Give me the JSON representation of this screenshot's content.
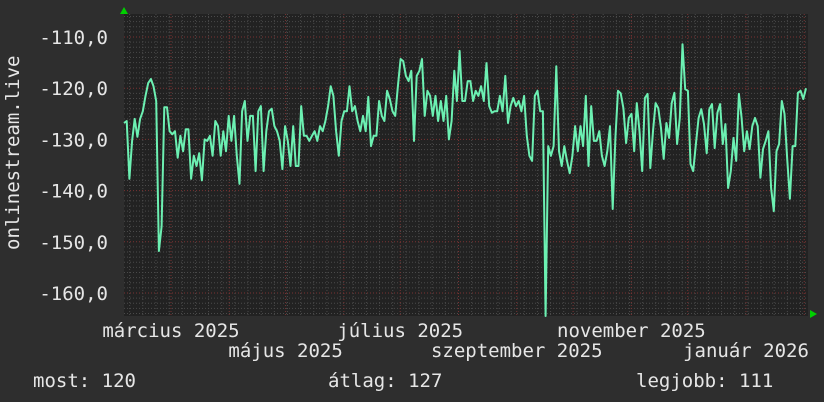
{
  "chart_data": {
    "type": "line",
    "title": "",
    "ylabel": "onlinestream.live",
    "xlabel": "",
    "xlim": [
      "2025-02-04",
      "2026-02-03"
    ],
    "ylim": [
      -164.5,
      -105.5
    ],
    "y_ticks": [
      -110,
      -120,
      -130,
      -140,
      -150,
      -160
    ],
    "y_tick_labels": [
      "-110,0",
      "-120,0",
      "-130,0",
      "-140,0",
      "-150,0",
      "-160,0"
    ],
    "x_ticks": [
      "2025-03-01",
      "2025-05-01",
      "2025-07-01",
      "2025-09-01",
      "2025-11-01",
      "2026-01-01"
    ],
    "x_tick_labels": [
      "március 2025",
      "május 2025",
      "július 2025",
      "szeptember 2025",
      "november 2025",
      "január 2026"
    ],
    "grid": true,
    "colors": {
      "line": "#6cf0b2",
      "background": "#2e2e2e",
      "plot_background": "#222222",
      "major_grid": "#7a3333",
      "minor_grid": "#4a4a4a",
      "arrow": "#00d000"
    },
    "series": [
      {
        "values": [
          -126.8,
          -126.4,
          -137.7,
          -130.3,
          -126,
          -129.5,
          -126,
          -124.5,
          -121.5,
          -119,
          -118.2,
          -119.6,
          -122.5,
          -151.8,
          -147,
          -123.7,
          -123.7,
          -128.4,
          -129,
          -128.4,
          -133.6,
          -129.3,
          -132.3,
          -128,
          -128,
          -137.7,
          -133.2,
          -135.2,
          -132.7,
          -138,
          -130,
          -130.3,
          -129.3,
          -133.2,
          -126.4,
          -127.4,
          -133.2,
          -128.4,
          -132.3,
          -125.4,
          -130.3,
          -125.4,
          -133.2,
          -138.7,
          -124.5,
          -122.5,
          -130.3,
          -125.4,
          -125.4,
          -136.2,
          -124.5,
          -123.5,
          -136.2,
          -128.4,
          -124.5,
          -124,
          -127.4,
          -128.4,
          -130.3,
          -135.8,
          -127.4,
          -130.3,
          -135.2,
          -127.4,
          -135.2,
          -135.2,
          -123.5,
          -129.3,
          -129.3,
          -130.3,
          -129.3,
          -128.4,
          -130.3,
          -127.4,
          -128.4,
          -126.4,
          -123.5,
          -119.6,
          -121.5,
          -128.4,
          -133.2,
          -126.4,
          -124.5,
          -124.5,
          -119.6,
          -124.5,
          -123.5,
          -126.4,
          -128.4,
          -125.4,
          -128.4,
          -121.7,
          -131.3,
          -129.3,
          -129.3,
          -122.5,
          -125.4,
          -126.4,
          -120.5,
          -122.1,
          -124.5,
          -125.4,
          -119.6,
          -114.3,
          -114.7,
          -117.6,
          -118.6,
          -116.6,
          -130.3,
          -117.6,
          -116.6,
          -114.3,
          -125.4,
          -120.5,
          -121.5,
          -125.4,
          -121.5,
          -126.4,
          -122.5,
          -126.4,
          -121.5,
          -130,
          -126.4,
          -116.6,
          -122.5,
          -112.7,
          -122.5,
          -122.5,
          -118.6,
          -118.6,
          -122.5,
          -120.5,
          -121.5,
          -119.6,
          -122.5,
          -115.1,
          -123.5,
          -124.8,
          -124.5,
          -124.5,
          -121.5,
          -124.5,
          -117.6,
          -126.8,
          -123.5,
          -121.9,
          -123.5,
          -122.5,
          -124.5,
          -121.5,
          -129.3,
          -133.2,
          -134.2,
          -121.5,
          -120.5,
          -124.5,
          -124.5,
          -164.5,
          -131.3,
          -133.2,
          -131.3,
          -115.7,
          -132.3,
          -135.2,
          -131.3,
          -134.2,
          -136.6,
          -133.2,
          -127.4,
          -132.3,
          -127.4,
          -131.3,
          -121.5,
          -135.2,
          -123.5,
          -130.3,
          -130.3,
          -128.4,
          -133.2,
          -135.2,
          -132.3,
          -127.4,
          -143.6,
          -129.7,
          -120.5,
          -121,
          -123.9,
          -130.7,
          -125.8,
          -125,
          -132.3,
          -122.9,
          -128.4,
          -136.2,
          -121.9,
          -121.1,
          -135.6,
          -128.4,
          -122.9,
          -123.9,
          -127.8,
          -133.8,
          -126.8,
          -129.7,
          -122.9,
          -120.9,
          -130.9,
          -125.8,
          -111.4,
          -120.2,
          -120.5,
          -134.8,
          -136.2,
          -130.9,
          -125.8,
          -124.1,
          -127,
          -132.7,
          -124.1,
          -123.1,
          -131.7,
          -124.8,
          -123.1,
          -130.9,
          -127,
          -139.5,
          -136.2,
          -129.7,
          -134.2,
          -121.1,
          -125.8,
          -132.3,
          -128.4,
          -131.9,
          -127.4,
          -125.8,
          -127.4,
          -137.5,
          -131.9,
          -130.3,
          -128.4,
          -139.5,
          -144,
          -132.3,
          -130.9,
          -122.5,
          -125,
          -133.8,
          -141.6,
          -131.3,
          -131.3,
          -120.9,
          -120.5,
          -122.1,
          -120
        ]
      }
    ]
  },
  "legend": {
    "current": "most: 120",
    "average": "átlag: 127",
    "best": "legjobb: 111"
  }
}
